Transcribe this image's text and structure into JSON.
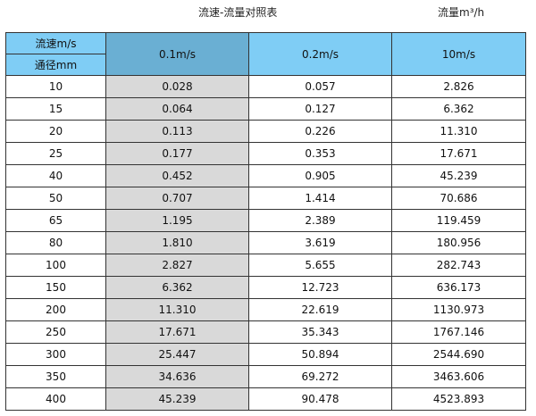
{
  "title": "流速-流量对照表",
  "unit": "流量m³/h",
  "header": {
    "velocity_label": "流速m/s",
    "diameter_label": "通径mm",
    "columns": [
      "0.1m/s",
      "0.2m/s",
      "10m/s"
    ]
  },
  "rows": [
    [
      "10",
      "0.028",
      "0.057",
      "2.826"
    ],
    [
      "15",
      "0.064",
      "0.127",
      "6.362"
    ],
    [
      "20",
      "0.113",
      "0.226",
      "11.310"
    ],
    [
      "25",
      "0.177",
      "0.353",
      "17.671"
    ],
    [
      "40",
      "0.452",
      "0.905",
      "45.239"
    ],
    [
      "50",
      "0.707",
      "1.414",
      "70.686"
    ],
    [
      "65",
      "1.195",
      "2.389",
      "119.459"
    ],
    [
      "80",
      "1.810",
      "3.619",
      "180.956"
    ],
    [
      "100",
      "2.827",
      "5.655",
      "282.743"
    ],
    [
      "150",
      "6.362",
      "12.723",
      "636.173"
    ],
    [
      "200",
      "11.310",
      "22.619",
      "1130.973"
    ],
    [
      "250",
      "17.671",
      "35.343",
      "1767.146"
    ],
    [
      "300",
      "25.447",
      "50.894",
      "2544.690"
    ],
    [
      "350",
      "34.636",
      "69.272",
      "3463.606"
    ],
    [
      "400",
      "45.239",
      "90.478",
      "4523.893"
    ]
  ],
  "colors": {
    "header": "#7fcdf5",
    "highlight_header": "#6aafd3",
    "highlight_column": "#d9d9d9"
  }
}
